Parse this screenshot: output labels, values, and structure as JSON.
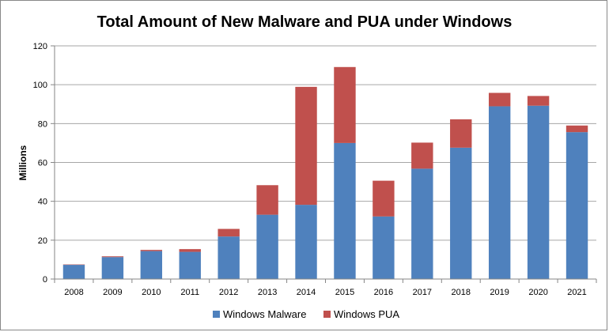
{
  "chart_data": {
    "type": "bar",
    "stacked": true,
    "title": "Total Amount of New Malware and PUA under Windows",
    "xlabel": "",
    "ylabel": "Millions",
    "ylim": [
      0,
      120
    ],
    "yticks": [
      "0",
      "20",
      "40",
      "60",
      "80",
      "100",
      "120"
    ],
    "grid": true,
    "legend_position": "bottom",
    "categories": [
      "2008",
      "2009",
      "2010",
      "2011",
      "2012",
      "2013",
      "2014",
      "2015",
      "2016",
      "2017",
      "2018",
      "2019",
      "2020",
      "2021"
    ],
    "series": [
      {
        "name": "Windows Malware",
        "color": "#4f81bd",
        "values": [
          7.3,
          11.3,
          14.4,
          14.0,
          21.9,
          33.1,
          38.2,
          70.0,
          32.2,
          56.8,
          67.6,
          88.9,
          89.2,
          75.6
        ]
      },
      {
        "name": "Windows PUA",
        "color": "#c0504d",
        "values": [
          0.2,
          0.4,
          0.6,
          1.4,
          3.9,
          15.2,
          60.7,
          39.1,
          18.4,
          13.4,
          14.6,
          6.9,
          5.0,
          3.4
        ]
      }
    ]
  }
}
